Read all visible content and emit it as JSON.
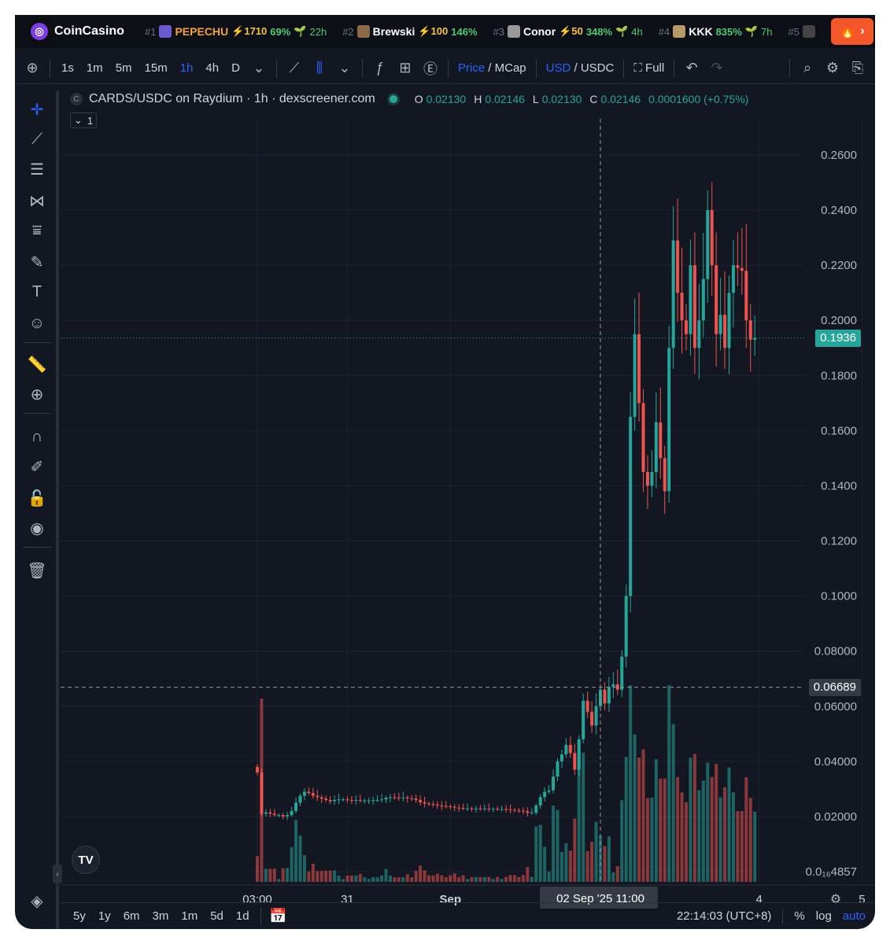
{
  "brand": {
    "name": "CoinCasino"
  },
  "ticker": [
    {
      "rank": "#1",
      "symbol": "PEPECHU",
      "boost": "⚡1710",
      "change": "69%",
      "age": "22h",
      "color": "#f4a23a",
      "avatar": "#6a5acd"
    },
    {
      "rank": "#2",
      "symbol": "Brewski",
      "boost": "⚡100",
      "change": "146%",
      "age": "",
      "color": "#ffffff",
      "avatar": "#8b6b4a"
    },
    {
      "rank": "#3",
      "symbol": "Conor",
      "boost": "⚡50",
      "change": "348%",
      "age": "4h",
      "color": "#ffffff",
      "avatar": "#999999"
    },
    {
      "rank": "#4",
      "symbol": "KKK",
      "boost": "",
      "change": "835%",
      "age": "7h",
      "color": "#ffffff",
      "avatar": "#b89a6a"
    },
    {
      "rank": "#5",
      "symbol": "",
      "boost": "",
      "change": "",
      "age": "",
      "color": "#ffffff",
      "avatar": "#444"
    }
  ],
  "toolbar": {
    "timeframes": [
      "1s",
      "1m",
      "5m",
      "15m",
      "1h",
      "4h",
      "D"
    ],
    "active_timeframe": "1h",
    "price_label": "Price",
    "mcap_label": "MCap",
    "usd_label": "USD",
    "usdc_label": "USDC",
    "full_label": "Full"
  },
  "legend": {
    "title": "CARDS/USDC on Raydium · 1h · dexscreener.com",
    "o_label": "O",
    "o": "0.02130",
    "h_label": "H",
    "h": "0.02146",
    "l_label": "L",
    "l": "0.02130",
    "c_label": "C",
    "c": "0.02146",
    "change": "0.0001600 (+0.75%)",
    "collapse_count": "1"
  },
  "chart_data": {
    "type": "candlestick",
    "y_ticks": [
      "0.2600",
      "0.2400",
      "0.2200",
      "0.2000",
      "0.1800",
      "0.1600",
      "0.1400",
      "0.1200",
      "0.1000",
      "0.08000",
      "0.06000",
      "0.04000",
      "0.02000",
      "0.0₁₆4857"
    ],
    "y_tick_values": [
      0.26,
      0.24,
      0.22,
      0.2,
      0.18,
      0.16,
      0.14,
      0.12,
      0.1,
      0.08,
      0.06,
      0.04,
      0.02,
      0.0
    ],
    "ylim": [
      0.0,
      0.26
    ],
    "x_ticks": [
      {
        "label": "03:00",
        "hour": 0
      },
      {
        "label": "31",
        "hour": 21
      },
      {
        "label": "Sep",
        "hour": 45
      },
      {
        "label": "4",
        "hour": 117
      },
      {
        "label": "5",
        "hour": 141
      }
    ],
    "crosshair_label": "02 Sep '25   11:00",
    "crosshair_hour": 80,
    "crosshair_price_label": "0.06689",
    "crosshair_price": 0.06689,
    "last_price_label": "0.1936",
    "last_price": 0.1936,
    "close": [
      0.036,
      0.021,
      0.0215,
      0.021,
      0.0205,
      0.0205,
      0.02,
      0.0205,
      0.022,
      0.025,
      0.0275,
      0.029,
      0.0285,
      0.0275,
      0.027,
      0.0265,
      0.026,
      0.0255,
      0.026,
      0.0262,
      0.0262,
      0.026,
      0.0258,
      0.026,
      0.0257,
      0.0258,
      0.0258,
      0.0259,
      0.026,
      0.0262,
      0.0268,
      0.027,
      0.0269,
      0.0268,
      0.0269,
      0.0266,
      0.0265,
      0.026,
      0.0252,
      0.0247,
      0.0245,
      0.0243,
      0.024,
      0.0238,
      0.0237,
      0.0235,
      0.0232,
      0.0231,
      0.0229,
      0.0229,
      0.0228,
      0.0229,
      0.0228,
      0.0229,
      0.0228,
      0.0228,
      0.0227,
      0.0227,
      0.0226,
      0.0224,
      0.0222,
      0.0221,
      0.0219,
      0.0213,
      0.0214,
      0.024,
      0.027,
      0.029,
      0.0295,
      0.0345,
      0.04,
      0.0425,
      0.046,
      0.043,
      0.037,
      0.048,
      0.062,
      0.058,
      0.053,
      0.06,
      0.066,
      0.061,
      0.067,
      0.068,
      0.066,
      0.078,
      0.1,
      0.165,
      0.195,
      0.17,
      0.145,
      0.14,
      0.145,
      0.163,
      0.15,
      0.138,
      0.19,
      0.229,
      0.21,
      0.2,
      0.195,
      0.22,
      0.19,
      0.2,
      0.215,
      0.24,
      0.22,
      0.195,
      0.202,
      0.19,
      0.21,
      0.22,
      0.219,
      0.218,
      0.2,
      0.193,
      0.1936
    ],
    "volume_note": "volume histogram at bottom of price pane"
  },
  "bottombar": {
    "ranges": [
      "5y",
      "1y",
      "6m",
      "3m",
      "1m",
      "5d",
      "1d"
    ],
    "clock": "22:14:03 (UTC+8)",
    "percent_label": "%",
    "log_label": "log",
    "auto_label": "auto"
  },
  "colors": {
    "up": "#26a69a",
    "down": "#ef5350",
    "accent": "#2962ff",
    "bg": "#131722",
    "grid": "#1e222d"
  }
}
